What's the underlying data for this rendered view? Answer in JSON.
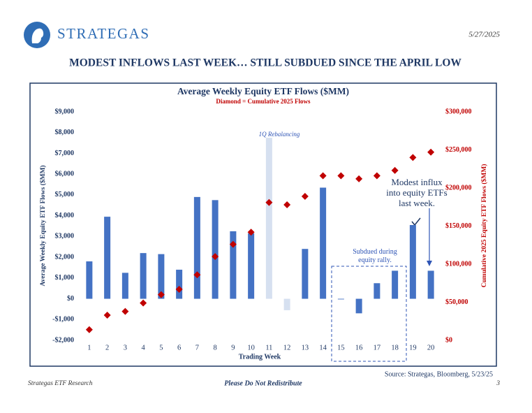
{
  "header": {
    "brand": "STRATEGAS",
    "date": "5/27/2025",
    "headline": "MODEST INFLOWS LAST WEEK… STILL SUBDUED SINCE THE APRIL LOW"
  },
  "footer": {
    "left": "Strategas ETF Research",
    "center": "Please Do Not Redistribute",
    "page": "3"
  },
  "chart_data": {
    "type": "bar",
    "title": "Average Weekly Equity ETF Flows ($MM)",
    "subtitle": "Diamond = Cumulative 2025 Flows",
    "x_label": "Trading Week",
    "y_label": "Average Weekly Equity ETF Flows ($MM)",
    "y2_label": "Cumulative 2025 Equity ETF Flows ($MM)",
    "source": "Source: Strategas, Bloomberg, 5/23/25",
    "annotations": [
      "1Q Rebalancing",
      "Subdued during equity rally.",
      "Modest influx into equity ETFs last week."
    ],
    "categories": [
      "1",
      "2",
      "3",
      "4",
      "5",
      "6",
      "7",
      "8",
      "9",
      "10",
      "11",
      "12",
      "13",
      "14",
      "15",
      "16",
      "17",
      "18",
      "19",
      "20"
    ],
    "series": [
      {
        "type": "bar",
        "values": [
          1800,
          3950,
          1250,
          2200,
          2150,
          1400,
          4900,
          4750,
          3250,
          3150,
          7750,
          -550,
          2400,
          5350,
          -30,
          -700,
          750,
          1350,
          3550,
          1350
        ],
        "colors": [
          "#4472c4",
          "#4472c4",
          "#4472c4",
          "#4472c4",
          "#4472c4",
          "#4472c4",
          "#4472c4",
          "#4472c4",
          "#4472c4",
          "#4472c4",
          "#d6e0f0",
          "#d6e0f0",
          "#4472c4",
          "#4472c4",
          "#4472c4",
          "#4472c4",
          "#4472c4",
          "#4472c4",
          "#4472c4",
          "#4472c4"
        ]
      },
      {
        "type": "scatter",
        "marker": "diamond",
        "axis": "y2",
        "color": "#c00000",
        "values": [
          14000,
          33000,
          38000,
          49000,
          60000,
          67000,
          86000,
          110000,
          126000,
          142000,
          181000,
          178000,
          189000,
          216000,
          216000,
          212000,
          216000,
          223000,
          240000,
          247000
        ]
      }
    ],
    "ylim": [
      -2000,
      9000
    ],
    "yticks": [
      {
        "value": 9000,
        "label": "$9,000"
      },
      {
        "value": 8000,
        "label": "$8,000"
      },
      {
        "value": 7000,
        "label": "$7,000"
      },
      {
        "value": 6000,
        "label": "$6,000"
      },
      {
        "value": 5000,
        "label": "$5,000"
      },
      {
        "value": 4000,
        "label": "$4,000"
      },
      {
        "value": 3000,
        "label": "$3,000"
      },
      {
        "value": 2000,
        "label": "$2,000"
      },
      {
        "value": 1000,
        "label": "$1,000"
      },
      {
        "value": 0,
        "label": "$0"
      },
      {
        "value": -1000,
        "label": "-$1,000"
      },
      {
        "value": -2000,
        "label": "-$2,000"
      }
    ],
    "y2lim": [
      0,
      300000
    ],
    "y2ticks": [
      {
        "value": 300000,
        "label": "$300,000"
      },
      {
        "value": 250000,
        "label": "$250,000"
      },
      {
        "value": 200000,
        "label": "$200,000"
      },
      {
        "value": 150000,
        "label": "$150,000"
      },
      {
        "value": 100000,
        "label": "$100,000"
      },
      {
        "value": 50000,
        "label": "$50,000"
      },
      {
        "value": 0,
        "label": "$0"
      }
    ],
    "grid": false
  }
}
